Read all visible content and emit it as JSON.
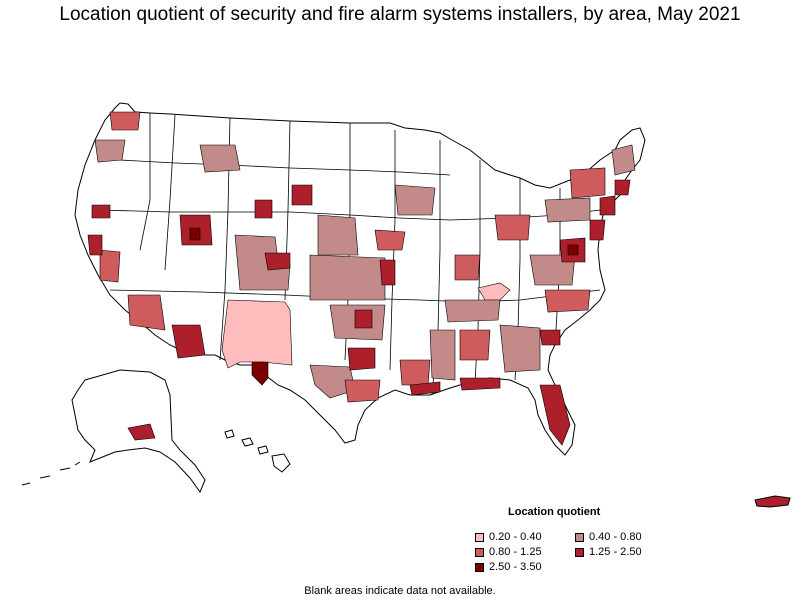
{
  "title": "Location quotient of security and fire alarm systems installers, by area, May 2021",
  "legend": {
    "title": "Location quotient",
    "items": [
      {
        "label": "0.20 - 0.40",
        "color": "#ffbcbc"
      },
      {
        "label": "0.40 - 0.80",
        "color": "#c38a8a"
      },
      {
        "label": "0.80 - 1.25",
        "color": "#cf5c5c"
      },
      {
        "label": "1.25 - 2.50",
        "color": "#ad1f2b"
      },
      {
        "label": "2.50 - 3.50",
        "color": "#7a0000"
      }
    ]
  },
  "footnote": "Blank areas indicate data not available.",
  "map_colors": {
    "no_data": "#ffffff",
    "border": "#000000"
  }
}
